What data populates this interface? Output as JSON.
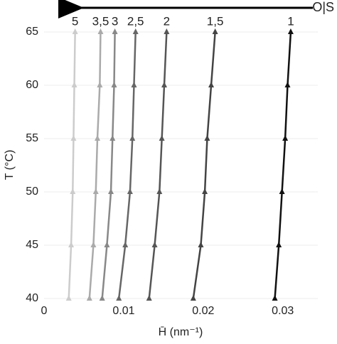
{
  "chart_data": {
    "type": "line",
    "annotation": "O|S",
    "xlabel": "H̄ (nm⁻¹)",
    "ylabel": "T (°C)",
    "xlim": [
      0,
      0.0344
    ],
    "xticks": [
      0,
      0.01,
      0.02,
      0.03
    ],
    "ylim": [
      40,
      65
    ],
    "yticks": [
      40,
      45,
      50,
      55,
      60,
      65
    ],
    "grid": true,
    "series": [
      {
        "name": "5",
        "color": "#cccccc",
        "x": [
          0.0031,
          0.0034,
          0.0036,
          0.0037,
          0.0038,
          0.0039
        ],
        "values": [
          40,
          45,
          50,
          55,
          60,
          65
        ]
      },
      {
        "name": "3,5",
        "color": "#aaaaaa",
        "x": [
          0.0057,
          0.0062,
          0.0065,
          0.0067,
          0.007,
          0.0071
        ],
        "values": [
          40,
          45,
          50,
          55,
          60,
          65
        ]
      },
      {
        "name": "3",
        "color": "#888888",
        "x": [
          0.0073,
          0.0079,
          0.0084,
          0.0086,
          0.0088,
          0.0089
        ],
        "values": [
          40,
          45,
          50,
          55,
          60,
          65
        ]
      },
      {
        "name": "2,5",
        "color": "#666666",
        "x": [
          0.0094,
          0.0102,
          0.0108,
          0.0111,
          0.0113,
          0.0115
        ],
        "values": [
          40,
          45,
          50,
          55,
          60,
          65
        ]
      },
      {
        "name": "2",
        "color": "#555555",
        "x": [
          0.0132,
          0.0139,
          0.0145,
          0.0148,
          0.0151,
          0.0154
        ],
        "values": [
          40,
          45,
          50,
          55,
          60,
          65
        ]
      },
      {
        "name": "1,5",
        "color": "#444444",
        "x": [
          0.01875,
          0.0197,
          0.0202,
          0.0205,
          0.021,
          0.0215
        ],
        "values": [
          40,
          45,
          50,
          55,
          60,
          65
        ]
      },
      {
        "name": "1",
        "color": "#111111",
        "x": [
          0.029,
          0.0295,
          0.0299,
          0.0303,
          0.0306,
          0.031
        ],
        "values": [
          40,
          45,
          50,
          55,
          60,
          65
        ]
      }
    ]
  }
}
